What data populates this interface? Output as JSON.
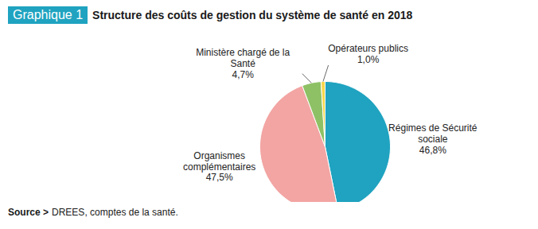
{
  "chart_data": {
    "type": "pie",
    "label": "Graphique 1",
    "title": "Structure des coûts de gestion du système de santé en 2018",
    "categories": [
      "Régimes de Sécurité\nsociale",
      "Organismes\ncomplémentaires",
      "Ministère chargé de la\nSanté",
      "Opérateurs publics"
    ],
    "values": [
      46.8,
      47.5,
      4.7,
      1.0
    ],
    "value_labels": [
      "46,8%",
      "47,5%",
      "4,7%",
      "1,0%"
    ],
    "colors": [
      "#1fa3c0",
      "#f2a5a3",
      "#8ec165",
      "#f7d64b"
    ],
    "data_labels": true,
    "source_label": "Source >",
    "source": "DREES, comptes de la santé."
  }
}
